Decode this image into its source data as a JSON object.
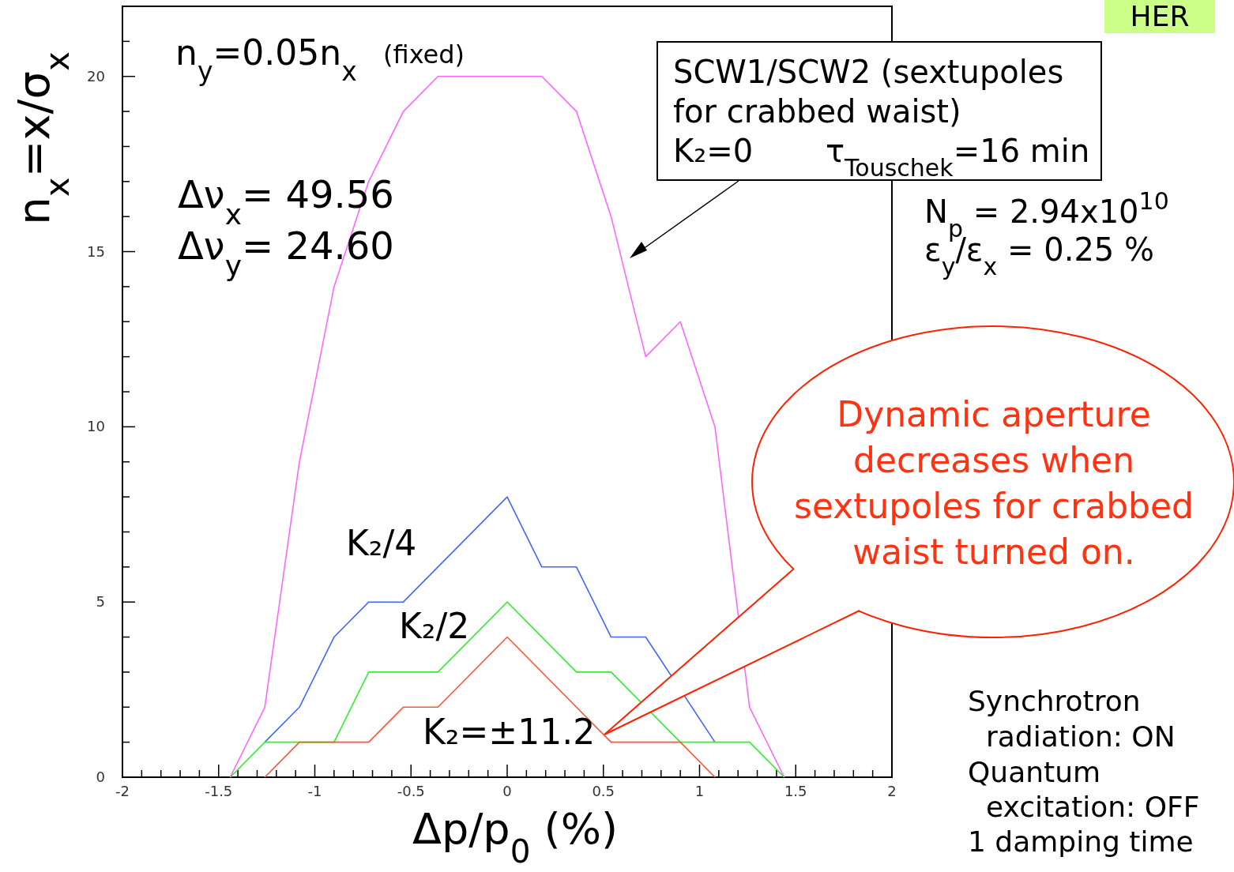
{
  "chart_data": {
    "type": "line",
    "title": "HER",
    "xlabel": "Δp/p$_{0}$ (%)",
    "ylabel": "n$_{x}$=x/σ$_{x}$",
    "xlim": [
      -2,
      2
    ],
    "ylim": [
      0,
      22
    ],
    "xticks": [
      -2,
      {
        "value": -1.9,
        "label": null
      },
      {
        "value": -1.8,
        "label": null
      },
      {
        "value": -1.7,
        "label": null
      },
      {
        "value": -1.6,
        "label": null
      },
      -1.5,
      {
        "value": -1.4,
        "label": null
      },
      {
        "value": -1.3,
        "label": null
      },
      {
        "value": -1.2,
        "label": null
      },
      {
        "value": -1.1,
        "label": null
      },
      -1,
      {
        "value": -0.9,
        "label": null
      },
      {
        "value": -0.8,
        "label": null
      },
      {
        "value": -0.7,
        "label": null
      },
      {
        "value": -0.6,
        "label": null
      },
      -0.5,
      {
        "value": -0.4,
        "label": null
      },
      {
        "value": -0.3,
        "label": null
      },
      {
        "value": -0.2,
        "label": null
      },
      {
        "value": -0.1,
        "label": null
      },
      0,
      {
        "value": 0.1,
        "label": null
      },
      {
        "value": 0.2,
        "label": null
      },
      {
        "value": 0.3,
        "label": null
      },
      {
        "value": 0.4,
        "label": null
      },
      0.5,
      {
        "value": 0.6,
        "label": null
      },
      {
        "value": 0.7,
        "label": null
      },
      {
        "value": 0.8,
        "label": null
      },
      {
        "value": 0.9,
        "label": null
      },
      1,
      {
        "value": 1.1,
        "label": null
      },
      {
        "value": 1.2,
        "label": null
      },
      {
        "value": 1.3,
        "label": null
      },
      {
        "value": 1.4,
        "label": null
      },
      1.5,
      {
        "value": 1.6,
        "label": null
      },
      {
        "value": 1.7,
        "label": null
      },
      {
        "value": 1.8,
        "label": null
      },
      {
        "value": 1.9,
        "label": null
      },
      2
    ],
    "yticks": [
      0,
      {
        "value": 1,
        "label": null
      },
      {
        "value": 2,
        "label": null
      },
      {
        "value": 3,
        "label": null
      },
      {
        "value": 4,
        "label": null
      },
      5,
      {
        "value": 6,
        "label": null
      },
      {
        "value": 7,
        "label": null
      },
      {
        "value": 8,
        "label": null
      },
      {
        "value": 9,
        "label": null
      },
      10,
      {
        "value": 11,
        "label": null
      },
      {
        "value": 12,
        "label": null
      },
      {
        "value": 13,
        "label": null
      },
      {
        "value": 14,
        "label": null
      },
      15,
      {
        "value": 16,
        "label": null
      },
      {
        "value": 17,
        "label": null
      },
      {
        "value": 18,
        "label": null
      },
      {
        "value": 19,
        "label": null
      },
      20,
      {
        "value": 21,
        "label": null
      }
    ],
    "grid": false,
    "marker": "none",
    "line_style": "solid",
    "series": [
      {
        "color": "#ff66ff",
        "x": [
          -1.44,
          -1.26,
          -1.08,
          -0.9,
          -0.72,
          -0.54,
          -0.36,
          0.18,
          0.36,
          0.54,
          0.72,
          0.9,
          1.08,
          1.26,
          1.44
        ],
        "values": [
          0,
          2,
          9,
          14,
          17,
          19,
          20,
          20,
          19,
          16,
          12,
          13,
          10,
          2,
          0
        ]
      },
      {
        "name": "K₂/4",
        "color": "#4466ff",
        "x": [
          -1.26,
          -1.08,
          -0.9,
          -0.72,
          -0.54,
          0,
          0.18,
          0.36,
          0.54,
          0.72,
          1.08
        ],
        "values": [
          1,
          2,
          4,
          5,
          5,
          8,
          6,
          6,
          4,
          4,
          1
        ]
      },
      {
        "name": "K₂/2",
        "color": "#33ee33",
        "x": [
          -1.44,
          -1.26,
          -0.9,
          -0.72,
          -0.36,
          0,
          0.36,
          0.54,
          0.9,
          1.26,
          1.44
        ],
        "values": [
          0,
          1,
          1,
          3,
          3,
          5,
          3,
          3,
          1,
          1,
          0
        ]
      },
      {
        "name": "K₂=±11.2",
        "color": "#ff5533",
        "x": [
          -1.26,
          -1.08,
          -0.72,
          -0.54,
          -0.36,
          0,
          0.54,
          0.9,
          1.08
        ],
        "values": [
          0,
          1,
          1,
          2,
          2,
          4,
          1,
          1,
          0
        ]
      }
    ],
    "annotations": [
      "n$_{y}$=0.05n$_{x}$",
      "(fixed)",
      "Δν$_{x}$= 49.56",
      "Δν$_{y}$= 24.60",
      "SCW1/SCW2 (sextupoles",
      "for crabbed waist)",
      "K₂=0",
      "τ$_{Touschek}$=16 min",
      "N$_{p}$ = 2.94x10$^{10}$",
      "ε$_{y}$/ε$_{x}$ = 0.25 %",
      "Dynamic aperture",
      "decreases when",
      "sextupoles for crabbed",
      "waist turned on.",
      "Synchrotron",
      "radiation: ON",
      "Quantum",
      "excitation: OFF",
      "1 damping time"
    ]
  }
}
